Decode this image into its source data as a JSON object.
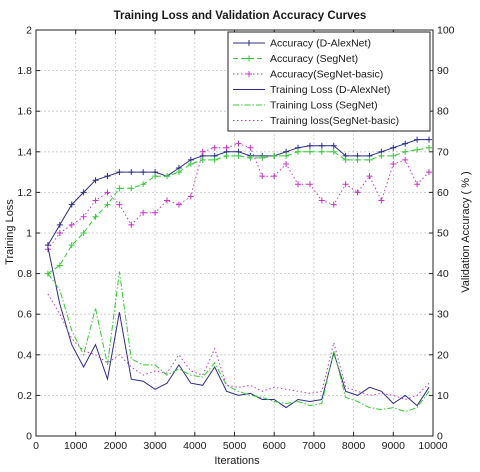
{
  "chart_data": {
    "type": "line",
    "title": "Training Loss and Validation Accuracy Curves",
    "xlabel": "Iterations",
    "ylabel_left": "Training Loss",
    "ylabel_right": "Validation Accuracy ( % )",
    "xlim": [
      0,
      10000
    ],
    "ylim_left": [
      0,
      2
    ],
    "ylim_right": [
      0,
      100
    ],
    "x_ticks": [
      0,
      1000,
      2000,
      3000,
      4000,
      5000,
      6000,
      7000,
      8000,
      9000,
      10000
    ],
    "y_ticks_left": [
      0,
      0.2,
      0.4,
      0.6,
      0.8,
      1,
      1.2,
      1.4,
      1.6,
      1.8,
      2
    ],
    "y_ticks_right": [
      0,
      10,
      20,
      30,
      40,
      50,
      60,
      70,
      80,
      90,
      100
    ],
    "grid": true,
    "legend_position": "top-right",
    "series": [
      {
        "name": "Accuracy (D-AlexNet)",
        "axis": "right",
        "color": "#2d2d8a",
        "dash": "solid",
        "marker": "+",
        "x": [
          300,
          600,
          900,
          1200,
          1500,
          1800,
          2100,
          2400,
          2700,
          3000,
          3300,
          3600,
          3900,
          4200,
          4500,
          4800,
          5100,
          5400,
          5700,
          6000,
          6300,
          6600,
          6900,
          7200,
          7500,
          7800,
          8100,
          8400,
          8700,
          9000,
          9300,
          9600,
          9900
        ],
        "values": [
          47,
          52,
          57,
          60,
          63,
          64,
          65,
          65,
          65,
          65,
          64,
          66,
          68,
          69,
          69,
          70,
          70,
          69,
          69,
          69,
          70,
          71,
          71.5,
          71.5,
          71.5,
          69,
          69,
          69,
          70,
          71,
          72,
          73,
          73
        ]
      },
      {
        "name": "Accuracy (SegNet)",
        "axis": "right",
        "color": "#33cc33",
        "dash": "dash",
        "marker": "+",
        "x": [
          300,
          600,
          900,
          1200,
          1500,
          1800,
          2100,
          2400,
          2700,
          3000,
          3300,
          3600,
          3900,
          4200,
          4500,
          4800,
          5100,
          5400,
          5700,
          6000,
          6300,
          6600,
          6900,
          7200,
          7500,
          7800,
          8100,
          8400,
          8700,
          9000,
          9300,
          9600,
          9900
        ],
        "values": [
          40,
          42,
          47,
          50,
          54,
          57,
          61,
          61,
          62,
          64,
          64,
          65,
          67,
          68,
          68,
          69,
          69,
          68.5,
          68.5,
          69,
          69,
          70,
          70,
          70,
          70,
          68,
          68,
          68,
          69,
          69,
          70,
          70.5,
          71
        ]
      },
      {
        "name": "Accuracy(SegNet-basic)",
        "axis": "right",
        "color": "#cc33cc",
        "dash": "dot",
        "marker": "+",
        "x": [
          300,
          600,
          900,
          1200,
          1500,
          1800,
          2100,
          2400,
          2700,
          3000,
          3300,
          3600,
          3900,
          4200,
          4500,
          4800,
          5100,
          5400,
          5700,
          6000,
          6300,
          6600,
          6900,
          7200,
          7500,
          7800,
          8100,
          8400,
          8700,
          9000,
          9300,
          9600,
          9900
        ],
        "values": [
          46,
          50,
          52,
          54,
          58,
          60,
          57,
          52,
          55,
          55,
          58,
          57,
          59,
          70,
          71,
          71,
          72,
          71,
          64,
          64,
          67,
          62,
          62,
          58,
          57,
          62,
          60,
          64,
          58,
          67,
          68,
          62,
          65
        ]
      },
      {
        "name": "Training Loss (D-AlexNet)",
        "axis": "left",
        "color": "#2d2d8a",
        "dash": "solid",
        "marker": "none",
        "x": [
          300,
          600,
          900,
          1200,
          1500,
          1800,
          2100,
          2400,
          2700,
          3000,
          3300,
          3600,
          3900,
          4200,
          4500,
          4800,
          5100,
          5400,
          5700,
          6000,
          6300,
          6600,
          6900,
          7200,
          7500,
          7800,
          8100,
          8400,
          8700,
          9000,
          9300,
          9600,
          9900
        ],
        "values": [
          0.93,
          0.65,
          0.45,
          0.34,
          0.45,
          0.28,
          0.61,
          0.28,
          0.27,
          0.23,
          0.26,
          0.35,
          0.26,
          0.25,
          0.34,
          0.22,
          0.2,
          0.21,
          0.18,
          0.18,
          0.14,
          0.18,
          0.17,
          0.18,
          0.41,
          0.22,
          0.2,
          0.24,
          0.22,
          0.16,
          0.2,
          0.15,
          0.24
        ]
      },
      {
        "name": "Training Loss (SegNet)",
        "axis": "left",
        "color": "#33cc33",
        "dash": "dashdot",
        "marker": "none",
        "x": [
          300,
          600,
          900,
          1200,
          1500,
          1800,
          2100,
          2400,
          2700,
          3000,
          3300,
          3600,
          3900,
          4200,
          4500,
          4800,
          5100,
          5400,
          5700,
          6000,
          6300,
          6600,
          6900,
          7200,
          7500,
          7800,
          8100,
          8400,
          8700,
          9000,
          9300,
          9600,
          9900
        ],
        "values": [
          0.8,
          0.72,
          0.52,
          0.4,
          0.63,
          0.35,
          0.81,
          0.38,
          0.35,
          0.35,
          0.3,
          0.33,
          0.3,
          0.29,
          0.36,
          0.25,
          0.22,
          0.2,
          0.19,
          0.17,
          0.16,
          0.17,
          0.15,
          0.16,
          0.42,
          0.19,
          0.17,
          0.14,
          0.13,
          0.14,
          0.12,
          0.14,
          0.22
        ]
      },
      {
        "name": "Training loss(SegNet-basic)",
        "axis": "left",
        "color": "#cc33cc",
        "dash": "dot",
        "marker": "none",
        "x": [
          300,
          600,
          900,
          1200,
          1500,
          1800,
          2100,
          2400,
          2700,
          3000,
          3300,
          3600,
          3900,
          4200,
          4500,
          4800,
          5100,
          5400,
          5700,
          6000,
          6300,
          6600,
          6900,
          7200,
          7500,
          7800,
          8100,
          8400,
          8700,
          9000,
          9300,
          9600,
          9900
        ],
        "values": [
          0.7,
          0.6,
          0.48,
          0.42,
          0.4,
          0.36,
          0.4,
          0.34,
          0.3,
          0.32,
          0.31,
          0.4,
          0.32,
          0.3,
          0.43,
          0.25,
          0.24,
          0.25,
          0.22,
          0.24,
          0.23,
          0.22,
          0.21,
          0.22,
          0.46,
          0.24,
          0.22,
          0.2,
          0.21,
          0.2,
          0.18,
          0.2,
          0.26
        ]
      }
    ]
  }
}
